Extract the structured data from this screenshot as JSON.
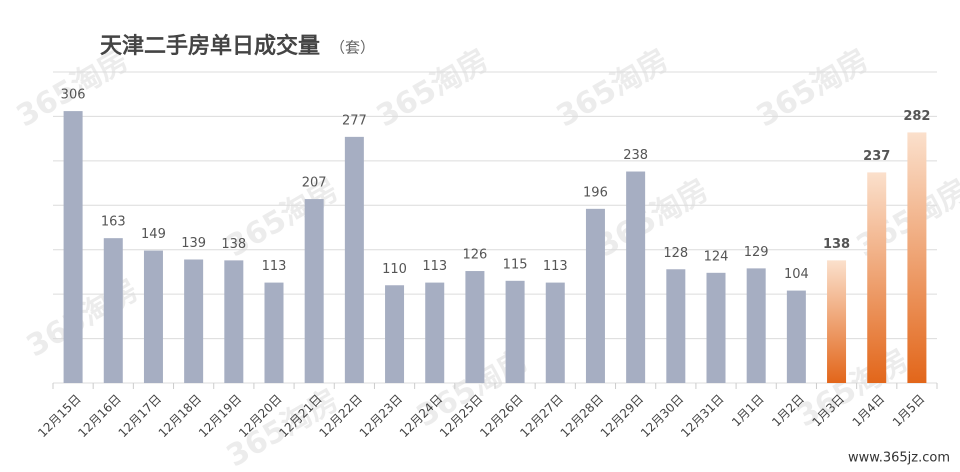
{
  "chart_data": {
    "type": "bar",
    "title": "天津二手房单日成交量",
    "subtitle": "（套）",
    "categories": [
      "12月15日",
      "12月16日",
      "12月17日",
      "12月18日",
      "12月19日",
      "12月20日",
      "12月21日",
      "12月22日",
      "12月23日",
      "12月24日",
      "12月25日",
      "12月26日",
      "12月27日",
      "12月28日",
      "12月29日",
      "12月30日",
      "12月31日",
      "1月1日",
      "1月2日",
      "1月3日",
      "1月4日",
      "1月5日"
    ],
    "values": [
      306,
      163,
      149,
      139,
      138,
      113,
      207,
      277,
      110,
      113,
      126,
      115,
      113,
      196,
      238,
      128,
      124,
      129,
      104,
      138,
      237,
      282
    ],
    "colors": [
      "#a6aec2",
      "#a6aec2",
      "#a6aec2",
      "#a6aec2",
      "#a6aec2",
      "#a6aec2",
      "#a6aec2",
      "#a6aec2",
      "#a6aec2",
      "#a6aec2",
      "#a6aec2",
      "#a6aec2",
      "#a6aec2",
      "#a6aec2",
      "#a6aec2",
      "#a6aec2",
      "#a6aec2",
      "#a6aec2",
      "#a6aec2",
      "#e8772a",
      "#e8772a",
      "#e8772a"
    ],
    "label_colors": [
      "#555555",
      "#555555",
      "#555555",
      "#555555",
      "#555555",
      "#555555",
      "#555555",
      "#555555",
      "#555555",
      "#555555",
      "#555555",
      "#555555",
      "#555555",
      "#555555",
      "#555555",
      "#555555",
      "#555555",
      "#555555",
      "#555555",
      "#c8651f",
      "#c8651f",
      "#c8651f"
    ],
    "ylim": [
      0,
      350
    ],
    "yticks": [
      0,
      50,
      100,
      150,
      200,
      250,
      300,
      350
    ],
    "grid": true,
    "watermark": "365淘房",
    "source": "www.365jz.com"
  }
}
